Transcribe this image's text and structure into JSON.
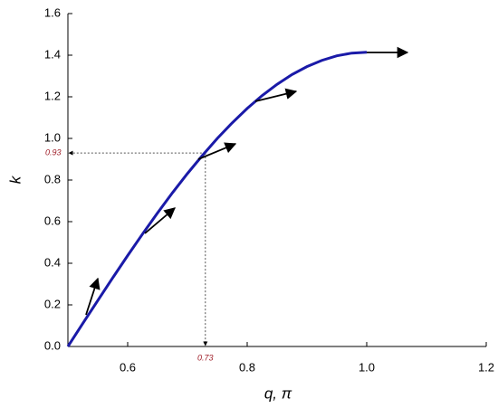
{
  "chart_data": {
    "type": "line",
    "x_label": "q, π",
    "y_label": "k",
    "x": [
      0.5,
      0.525,
      0.55,
      0.575,
      0.6,
      0.625,
      0.65,
      0.675,
      0.7,
      0.725,
      0.75,
      0.775,
      0.8,
      0.825,
      0.85,
      0.875,
      0.9,
      0.925,
      0.95,
      0.975,
      1.0
    ],
    "series": [
      {
        "color": "#1a1aa8",
        "values": [
          0,
          0.111,
          0.221,
          0.33,
          0.437,
          0.541,
          0.642,
          0.739,
          0.831,
          0.918,
          1.0,
          1.075,
          1.144,
          1.206,
          1.26,
          1.307,
          1.345,
          1.375,
          1.397,
          1.41,
          1.414
        ]
      }
    ],
    "xlim": [
      0.5,
      1.2
    ],
    "xticks": [
      0.6,
      0.8,
      {
        "value": 1.0,
        "label": "1.0"
      },
      1.2
    ],
    "ylim": [
      0,
      1.6
    ],
    "yticks": [
      {
        "value": 0,
        "label": "0.0"
      },
      0.2,
      0.4,
      0.6,
      0.8,
      {
        "value": 1.0,
        "label": "1.0"
      },
      1.2,
      1.4,
      1.6
    ],
    "guide": {
      "x": 0.73,
      "y": 0.93
    }
  }
}
